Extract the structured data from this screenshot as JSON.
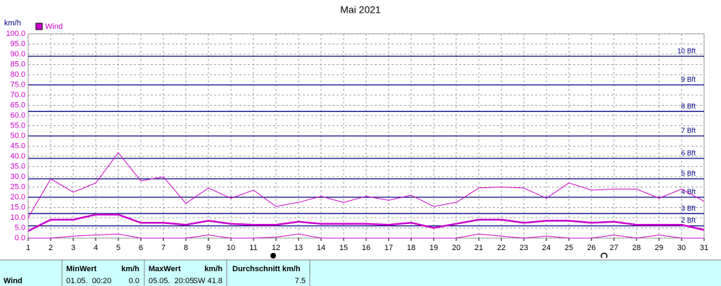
{
  "chart_data": {
    "type": "line",
    "title": "Mai 2021",
    "y_unit": "km/h",
    "legend_label": "Wind",
    "legend_color": "#cc00cc",
    "x": [
      1,
      2,
      3,
      4,
      5,
      6,
      7,
      8,
      9,
      10,
      11,
      12,
      13,
      14,
      15,
      16,
      17,
      18,
      19,
      20,
      21,
      22,
      23,
      24,
      25,
      26,
      27,
      28,
      29,
      30,
      31
    ],
    "xlim": [
      1,
      31
    ],
    "xticks": [
      1,
      2,
      3,
      4,
      5,
      6,
      7,
      8,
      9,
      10,
      11,
      12,
      13,
      14,
      15,
      16,
      17,
      18,
      19,
      20,
      21,
      22,
      23,
      24,
      25,
      26,
      27,
      28,
      29,
      30,
      31
    ],
    "ylim": [
      0,
      100
    ],
    "yticks": [
      {
        "value": 0,
        "label": "0.0"
      },
      {
        "value": 5,
        "label": "5.0"
      },
      {
        "value": 10,
        "label": "10.0"
      },
      {
        "value": 15,
        "label": "15.0"
      },
      {
        "value": 20,
        "label": "20.0"
      },
      {
        "value": 25,
        "label": "25.0"
      },
      {
        "value": 30,
        "label": "30.0"
      },
      {
        "value": 35,
        "label": "35.0"
      },
      {
        "value": 40,
        "label": "40.0"
      },
      {
        "value": 45,
        "label": "45.0"
      },
      {
        "value": 50,
        "label": "50.0"
      },
      {
        "value": 55,
        "label": "55.0"
      },
      {
        "value": 60,
        "label": "60.0"
      },
      {
        "value": 65,
        "label": "65.0"
      },
      {
        "value": 70,
        "label": "70.0"
      },
      {
        "value": 75,
        "label": "75.0"
      },
      {
        "value": 80,
        "label": "80.0"
      },
      {
        "value": 85,
        "label": "85.0"
      },
      {
        "value": 90,
        "label": "90.0"
      },
      {
        "value": 95,
        "label": "95.0"
      },
      {
        "value": 100,
        "label": "100.0"
      }
    ],
    "grid": true,
    "reference_lines": [
      {
        "value": 6,
        "label": "2 Bft"
      },
      {
        "value": 12,
        "label": "3 Bft"
      },
      {
        "value": 20,
        "label": "4 Bft"
      },
      {
        "value": 29,
        "label": "5 Bft"
      },
      {
        "value": 39,
        "label": "6 Bft"
      },
      {
        "value": 50,
        "label": "7 Bft"
      },
      {
        "value": 62,
        "label": "8 Bft"
      },
      {
        "value": 75,
        "label": "9 Bft"
      },
      {
        "value": 89,
        "label": "10 Bft"
      }
    ],
    "reference_color": "#000080",
    "series": [
      {
        "color": "#cc00cc",
        "width": 1,
        "values": [
          10,
          29,
          22.5,
          27,
          41.8,
          28,
          30,
          17,
          24.5,
          19.5,
          23.5,
          15.5,
          17.5,
          20.5,
          17.5,
          20.5,
          18.5,
          21,
          15.5,
          17.5,
          24.5,
          25,
          24.5,
          19.5,
          27,
          23.5,
          24,
          24,
          19.5,
          24,
          18
        ]
      },
      {
        "color": "#cc00cc",
        "width": 2.5,
        "values": [
          3.5,
          9,
          9,
          11.5,
          11.5,
          7.5,
          7.5,
          6.5,
          8.5,
          7,
          6.5,
          6.5,
          8,
          7,
          7,
          7,
          6.5,
          7.5,
          5,
          7,
          9,
          9,
          7.5,
          8.5,
          8.5,
          7.5,
          8,
          6.5,
          6.5,
          6.5,
          4
        ]
      },
      {
        "color": "#cc00cc",
        "width": 1,
        "values": [
          0,
          0,
          1,
          1.5,
          2,
          0,
          0,
          0,
          1.5,
          0,
          0,
          0.5,
          2,
          0,
          0,
          0,
          0,
          0,
          0,
          0,
          2,
          1,
          0,
          1,
          0,
          0,
          1.5,
          0,
          1.5,
          0,
          0
        ]
      }
    ]
  },
  "table": {
    "row_label": "Wind",
    "headers": [
      "MinWert",
      "km/h",
      "MaxWert",
      "km/h",
      "Durchschnitt km/h"
    ],
    "cells": [
      "01.05.  00:20",
      "0.0",
      "05.05.  20:05",
      "SW 41.8",
      "7.5"
    ]
  }
}
